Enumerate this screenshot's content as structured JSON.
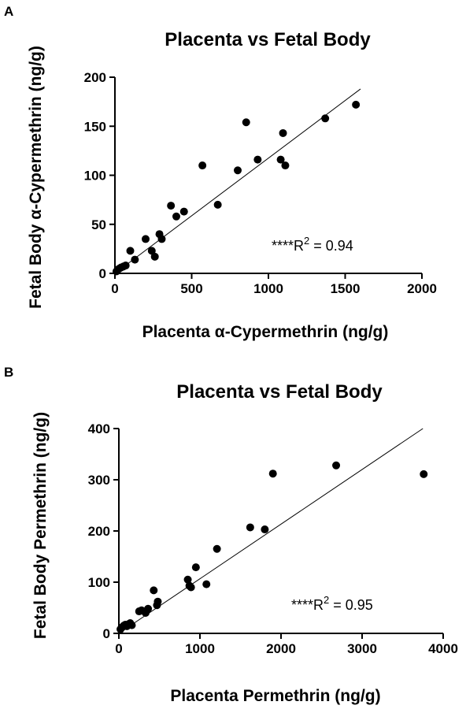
{
  "chart_data": [
    {
      "panel": "A",
      "type": "scatter",
      "title": "Placenta vs Fetal Body",
      "xlabel": "Placenta α-Cypermethrin (ng/g)",
      "ylabel": "Fetal Body α-Cypermethrin (ng/g)",
      "xlim": [
        0,
        2000
      ],
      "ylim": [
        0,
        200
      ],
      "xticks": [
        "0",
        "500",
        "1000",
        "1500",
        "2000"
      ],
      "yticks": [
        "0",
        "50",
        "100",
        "150",
        "200"
      ],
      "grid": false,
      "annotation": {
        "stars": "****",
        "r": "R",
        "exp": "2",
        "value": " = 0.94"
      },
      "fit_line": {
        "x": [
          0,
          1600
        ],
        "y": [
          0,
          188
        ]
      },
      "points": [
        {
          "x": 10,
          "y": 2
        },
        {
          "x": 20,
          "y": 4
        },
        {
          "x": 30,
          "y": 5
        },
        {
          "x": 40,
          "y": 6
        },
        {
          "x": 55,
          "y": 7
        },
        {
          "x": 70,
          "y": 8
        },
        {
          "x": 100,
          "y": 23
        },
        {
          "x": 130,
          "y": 14
        },
        {
          "x": 200,
          "y": 35
        },
        {
          "x": 240,
          "y": 23
        },
        {
          "x": 260,
          "y": 17
        },
        {
          "x": 290,
          "y": 40
        },
        {
          "x": 305,
          "y": 35
        },
        {
          "x": 365,
          "y": 69
        },
        {
          "x": 400,
          "y": 58
        },
        {
          "x": 450,
          "y": 63
        },
        {
          "x": 570,
          "y": 110
        },
        {
          "x": 670,
          "y": 70
        },
        {
          "x": 800,
          "y": 105
        },
        {
          "x": 855,
          "y": 154
        },
        {
          "x": 930,
          "y": 116
        },
        {
          "x": 1080,
          "y": 116
        },
        {
          "x": 1095,
          "y": 143
        },
        {
          "x": 1110,
          "y": 110
        },
        {
          "x": 1370,
          "y": 158
        },
        {
          "x": 1570,
          "y": 172
        }
      ]
    },
    {
      "panel": "B",
      "type": "scatter",
      "title": "Placenta vs Fetal Body",
      "xlabel": "Placenta Permethrin (ng/g)",
      "ylabel": "Fetal Body Permethrin (ng/g)",
      "xlim": [
        0,
        4000
      ],
      "ylim": [
        0,
        400
      ],
      "xticks": [
        "0",
        "1000",
        "2000",
        "3000",
        "4000"
      ],
      "yticks": [
        "0",
        "100",
        "200",
        "300",
        "400"
      ],
      "grid": false,
      "annotation": {
        "stars": "****",
        "r": "R",
        "exp": "2",
        "value": " = 0.95"
      },
      "fit_line": {
        "x": [
          0,
          3750
        ],
        "y": [
          0,
          400
        ]
      },
      "points": [
        {
          "x": 20,
          "y": 8
        },
        {
          "x": 40,
          "y": 12
        },
        {
          "x": 60,
          "y": 15
        },
        {
          "x": 80,
          "y": 17
        },
        {
          "x": 100,
          "y": 14
        },
        {
          "x": 120,
          "y": 18
        },
        {
          "x": 140,
          "y": 20
        },
        {
          "x": 160,
          "y": 16
        },
        {
          "x": 250,
          "y": 43
        },
        {
          "x": 280,
          "y": 45
        },
        {
          "x": 330,
          "y": 40
        },
        {
          "x": 360,
          "y": 48
        },
        {
          "x": 430,
          "y": 84
        },
        {
          "x": 470,
          "y": 55
        },
        {
          "x": 480,
          "y": 62
        },
        {
          "x": 850,
          "y": 105
        },
        {
          "x": 870,
          "y": 93
        },
        {
          "x": 890,
          "y": 90
        },
        {
          "x": 950,
          "y": 129
        },
        {
          "x": 1080,
          "y": 96
        },
        {
          "x": 1210,
          "y": 165
        },
        {
          "x": 1620,
          "y": 207
        },
        {
          "x": 1800,
          "y": 203
        },
        {
          "x": 1900,
          "y": 312
        },
        {
          "x": 2680,
          "y": 328
        },
        {
          "x": 3760,
          "y": 311
        }
      ]
    }
  ]
}
